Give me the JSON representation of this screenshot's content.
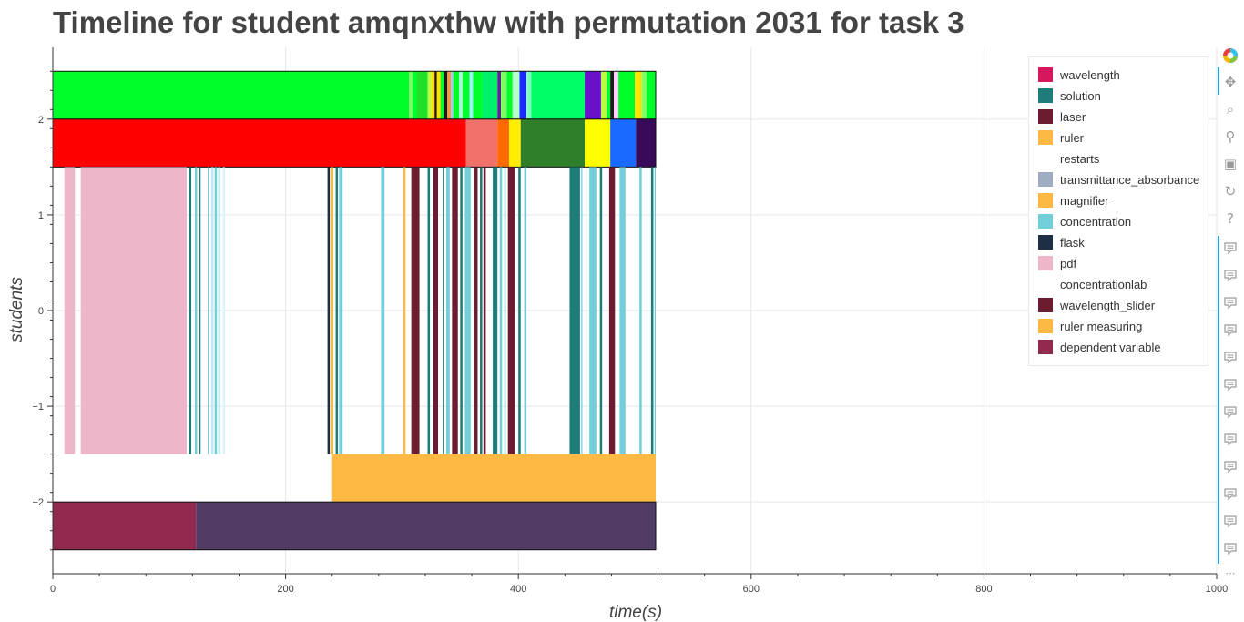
{
  "chart_data": {
    "type": "timeline",
    "title": "Timeline for student amqnxthw with permutation 2031 for task 3",
    "xlabel": "time(s)",
    "ylabel": "students",
    "xlim": [
      0,
      1000
    ],
    "ylim": [
      -2.75,
      2.75
    ],
    "xticks": [
      0,
      200,
      400,
      600,
      800,
      1000
    ],
    "yticks": [
      -2,
      -1,
      0,
      1,
      2
    ],
    "xtick_labels": [
      "0",
      "200",
      "400",
      "600",
      "800",
      "1000"
    ],
    "ytick_labels": [
      "−2",
      "−1",
      "0",
      "1",
      "2"
    ],
    "grid": true,
    "legend_position": "top-right",
    "legend": [
      {
        "label": "wavelength",
        "color": "#d6175e"
      },
      {
        "label": "solution",
        "color": "#1e7d78"
      },
      {
        "label": "laser",
        "color": "#6b1c2e"
      },
      {
        "label": "ruler",
        "color": "#fdb944"
      },
      {
        "label": "restarts",
        "color": "#ffffff"
      },
      {
        "label": "transmittance_absorbance",
        "color": "#9fadc2"
      },
      {
        "label": "magnifier",
        "color": "#fdb944"
      },
      {
        "label": "concentration",
        "color": "#72cfd9"
      },
      {
        "label": "flask",
        "color": "#1d2e45"
      },
      {
        "label": "pdf",
        "color": "#eeb6c9"
      },
      {
        "label": "concentrationlab",
        "color": "#ffffff"
      },
      {
        "label": "wavelength_slider",
        "color": "#6b1c2e"
      },
      {
        "label": "ruler measuring",
        "color": "#fdb944"
      },
      {
        "label": "dependent variable",
        "color": "#922a50"
      }
    ],
    "rows": [
      {
        "y0": 2,
        "y1": 2.5,
        "outline": true,
        "segments": [
          {
            "x0": 0,
            "x1": 306,
            "color": "#00ff2a"
          },
          {
            "x0": 306,
            "x1": 309,
            "color": "#7fff66"
          },
          {
            "x0": 309,
            "x1": 313,
            "color": "#00ff2a"
          },
          {
            "x0": 313,
            "x1": 322,
            "color": "#22e02a"
          },
          {
            "x0": 322,
            "x1": 325,
            "color": "#b8ff4a"
          },
          {
            "x0": 325,
            "x1": 328,
            "color": "#ffe000"
          },
          {
            "x0": 328,
            "x1": 330,
            "color": "#2a1a00"
          },
          {
            "x0": 330,
            "x1": 333,
            "color": "#ffe000"
          },
          {
            "x0": 333,
            "x1": 336,
            "color": "#00ff2a"
          },
          {
            "x0": 336,
            "x1": 339,
            "color": "#1a1a1a"
          },
          {
            "x0": 339,
            "x1": 342,
            "color": "#ff9a3a"
          },
          {
            "x0": 342,
            "x1": 344,
            "color": "#a0c8ff"
          },
          {
            "x0": 344,
            "x1": 349,
            "color": "#00ff2a"
          },
          {
            "x0": 349,
            "x1": 352,
            "color": "#a0ffd0"
          },
          {
            "x0": 352,
            "x1": 358,
            "color": "#00ff2a"
          },
          {
            "x0": 358,
            "x1": 361,
            "color": "#9cf0ff"
          },
          {
            "x0": 361,
            "x1": 369,
            "color": "#00ff2a"
          },
          {
            "x0": 369,
            "x1": 382,
            "color": "#00f06a"
          },
          {
            "x0": 382,
            "x1": 385,
            "color": "#5a2a8a"
          },
          {
            "x0": 385,
            "x1": 390,
            "color": "#7fff66"
          },
          {
            "x0": 390,
            "x1": 395,
            "color": "#00ff2a"
          },
          {
            "x0": 395,
            "x1": 401,
            "color": "#b8ffcc"
          },
          {
            "x0": 401,
            "x1": 407,
            "color": "#1a2aff"
          },
          {
            "x0": 407,
            "x1": 411,
            "color": "#7fffc0"
          },
          {
            "x0": 411,
            "x1": 457,
            "color": "#00ff66"
          },
          {
            "x0": 457,
            "x1": 471,
            "color": "#6a0fcc"
          },
          {
            "x0": 471,
            "x1": 476,
            "color": "#b8ff4a"
          },
          {
            "x0": 476,
            "x1": 479,
            "color": "#00ff2a"
          },
          {
            "x0": 479,
            "x1": 482,
            "color": "#1a1a1a"
          },
          {
            "x0": 482,
            "x1": 486,
            "color": "#ffd0ff"
          },
          {
            "x0": 486,
            "x1": 500,
            "color": "#00ff2a"
          },
          {
            "x0": 500,
            "x1": 506,
            "color": "#ffe000"
          },
          {
            "x0": 506,
            "x1": 510,
            "color": "#7fff66"
          },
          {
            "x0": 510,
            "x1": 518,
            "color": "#00ff2a"
          }
        ]
      },
      {
        "y0": 1.5,
        "y1": 2,
        "outline": true,
        "segments": [
          {
            "x0": 0,
            "x1": 355,
            "color": "#ff0000"
          },
          {
            "x0": 355,
            "x1": 382,
            "color": "#f0706a"
          },
          {
            "x0": 382,
            "x1": 392,
            "color": "#ff6a00"
          },
          {
            "x0": 392,
            "x1": 402,
            "color": "#ffee00"
          },
          {
            "x0": 402,
            "x1": 457,
            "color": "#2f7f2a"
          },
          {
            "x0": 457,
            "x1": 479,
            "color": "#ffff00"
          },
          {
            "x0": 479,
            "x1": 501,
            "color": "#1a6aff"
          },
          {
            "x0": 501,
            "x1": 518,
            "color": "#3a0a5a"
          }
        ]
      },
      {
        "y0": -1.5,
        "y1": 1.5,
        "outline": false,
        "segments": [
          {
            "x0": 10,
            "x1": 19,
            "color": "#eeb6c9"
          },
          {
            "x0": 24,
            "x1": 115,
            "color": "#eeb6c9"
          },
          {
            "x0": 117,
            "x1": 119,
            "color": "#1e7d78"
          },
          {
            "x0": 122,
            "x1": 124,
            "color": "#72cfd9"
          },
          {
            "x0": 126,
            "x1": 127,
            "color": "#1e7d78"
          },
          {
            "x0": 133,
            "x1": 134,
            "color": "#72cfd9"
          },
          {
            "x0": 136,
            "x1": 138,
            "color": "#bde9f0"
          },
          {
            "x0": 139,
            "x1": 141,
            "color": "#72cfd9"
          },
          {
            "x0": 142,
            "x1": 144,
            "color": "#bde9f0"
          },
          {
            "x0": 146,
            "x1": 148,
            "color": "#dff4f8"
          },
          {
            "x0": 236,
            "x1": 238,
            "color": "#1d2e45"
          },
          {
            "x0": 239,
            "x1": 241,
            "color": "#fdb944"
          },
          {
            "x0": 243,
            "x1": 245,
            "color": "#1e7d78"
          },
          {
            "x0": 246,
            "x1": 249,
            "color": "#72cfd9"
          },
          {
            "x0": 282,
            "x1": 285,
            "color": "#72cfd9"
          },
          {
            "x0": 301,
            "x1": 303,
            "color": "#fdb944"
          },
          {
            "x0": 308,
            "x1": 315,
            "color": "#6b1c2e"
          },
          {
            "x0": 322,
            "x1": 324,
            "color": "#1e7d78"
          },
          {
            "x0": 327,
            "x1": 331,
            "color": "#6b1c2e"
          },
          {
            "x0": 335,
            "x1": 336,
            "color": "#1e7d78"
          },
          {
            "x0": 338,
            "x1": 341,
            "color": "#72cfd9"
          },
          {
            "x0": 343,
            "x1": 348,
            "color": "#6b1c2e"
          },
          {
            "x0": 350,
            "x1": 352,
            "color": "#1e7d78"
          },
          {
            "x0": 354,
            "x1": 359,
            "color": "#72cfd9"
          },
          {
            "x0": 362,
            "x1": 365,
            "color": "#6b1c2e"
          },
          {
            "x0": 367,
            "x1": 369,
            "color": "#1e7d78"
          },
          {
            "x0": 370,
            "x1": 372,
            "color": "#6b1c2e"
          },
          {
            "x0": 378,
            "x1": 382,
            "color": "#1e7d78"
          },
          {
            "x0": 384,
            "x1": 386,
            "color": "#72cfd9"
          },
          {
            "x0": 388,
            "x1": 389,
            "color": "#1e7d78"
          },
          {
            "x0": 391,
            "x1": 397,
            "color": "#6b1c2e"
          },
          {
            "x0": 400,
            "x1": 402,
            "color": "#1e7d78"
          },
          {
            "x0": 405,
            "x1": 407,
            "color": "#72cfd9"
          },
          {
            "x0": 444,
            "x1": 453,
            "color": "#1e7d78"
          },
          {
            "x0": 454,
            "x1": 455,
            "color": "#72cfd9"
          },
          {
            "x0": 461,
            "x1": 467,
            "color": "#72cfd9"
          },
          {
            "x0": 470,
            "x1": 472,
            "color": "#1e7d78"
          },
          {
            "x0": 478,
            "x1": 483,
            "color": "#6b1c2e"
          },
          {
            "x0": 487,
            "x1": 492,
            "color": "#72cfd9"
          },
          {
            "x0": 504,
            "x1": 506,
            "color": "#72cfd9"
          },
          {
            "x0": 514,
            "x1": 516,
            "color": "#1e7d78"
          },
          {
            "x0": 517,
            "x1": 518,
            "color": "#72cfd9"
          }
        ]
      },
      {
        "y0": -2,
        "y1": -1.5,
        "outline": false,
        "segments": [
          {
            "x0": 240,
            "x1": 518,
            "color": "#fdb944"
          }
        ]
      },
      {
        "y0": -2.5,
        "y1": -2,
        "outline": true,
        "segments": [
          {
            "x0": 0,
            "x1": 123,
            "color": "#922a50"
          },
          {
            "x0": 123,
            "x1": 518,
            "color": "#513a63"
          }
        ]
      }
    ]
  },
  "toolbar": {
    "logo_icon": "bokeh-logo-icon",
    "tools": [
      "pan-icon",
      "box-zoom-icon",
      "wheel-zoom-icon",
      "save-icon",
      "reset-icon",
      "help-icon"
    ],
    "hover_tool_count": 12,
    "more_label": "⋯"
  }
}
